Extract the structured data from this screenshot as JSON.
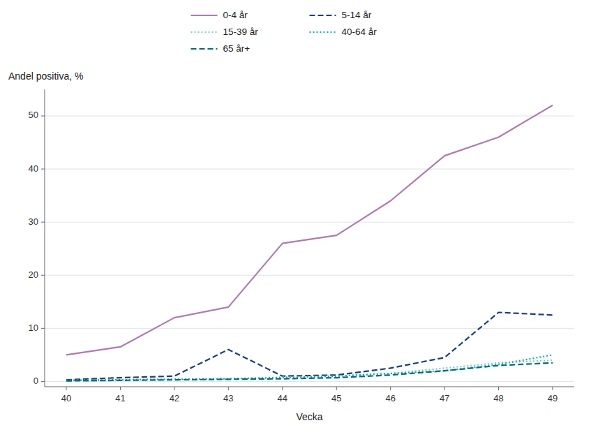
{
  "chart_data": {
    "type": "line",
    "xlabel": "Vecka",
    "ylabel": "Andel positiva, %",
    "x": [
      40,
      41,
      42,
      43,
      44,
      45,
      46,
      47,
      48,
      49
    ],
    "series": [
      {
        "name": "0-4 år",
        "color": "#b07ab0",
        "line_style": "solid",
        "values": [
          5.0,
          6.5,
          12.0,
          14.0,
          26.0,
          27.5,
          34.0,
          42.5,
          46.0,
          52.0
        ]
      },
      {
        "name": "5-14 år",
        "color": "#1a3c8f",
        "line_style": "dashed",
        "values": [
          0.3,
          0.7,
          1.0,
          6.0,
          1.0,
          1.2,
          2.5,
          4.5,
          13.0,
          12.5
        ]
      },
      {
        "name": "15-39 år",
        "color": "#7dcfca",
        "line_style": "dotted",
        "values": [
          0.2,
          0.3,
          0.4,
          0.5,
          0.8,
          1.0,
          1.5,
          2.5,
          3.5,
          4.0
        ]
      },
      {
        "name": "40-64 år",
        "color": "#00b0d0",
        "line_style": "dotted",
        "values": [
          0.2,
          0.3,
          0.4,
          0.5,
          0.7,
          1.0,
          1.5,
          2.0,
          3.2,
          5.0
        ]
      },
      {
        "name": "65 år+",
        "color": "#006e6e",
        "line_style": "dashed",
        "values": [
          0.1,
          0.2,
          0.3,
          0.4,
          0.5,
          0.7,
          1.2,
          2.0,
          3.0,
          3.5
        ]
      }
    ],
    "xlim": [
      39.6,
      49.4
    ],
    "ylim": [
      -1,
      55
    ],
    "xticks": [
      40,
      41,
      42,
      43,
      44,
      45,
      46,
      47,
      48,
      49
    ],
    "yticks": [
      0,
      10,
      20,
      30,
      40,
      50
    ],
    "grid": true,
    "legend": "top"
  }
}
